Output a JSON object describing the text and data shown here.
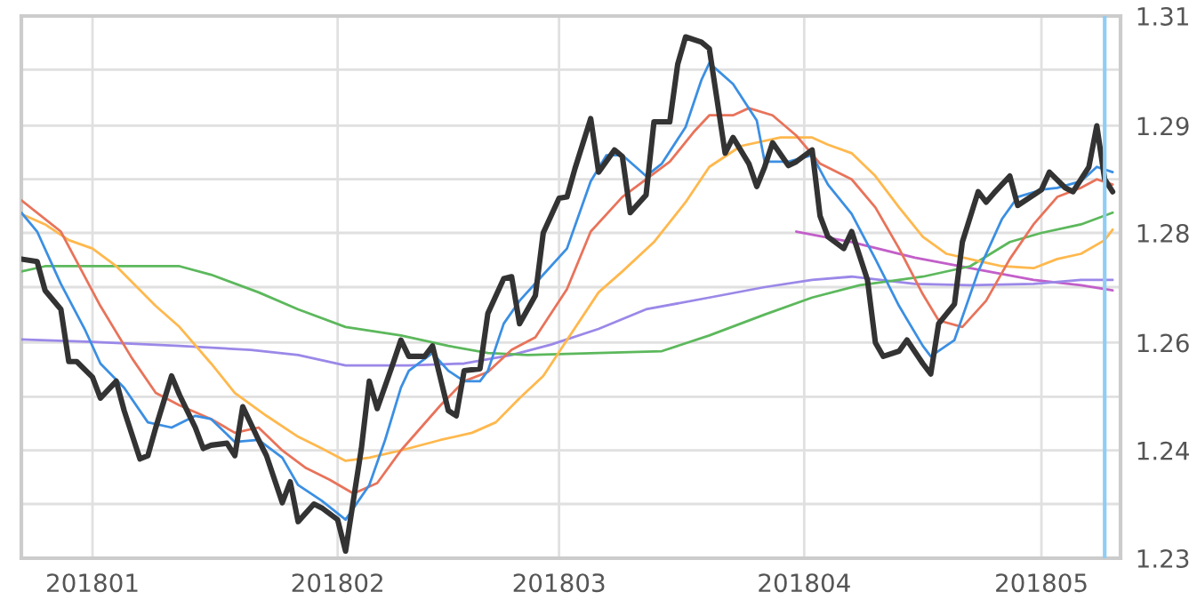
{
  "chart_data": {
    "type": "line",
    "xlim": [
      "2017-12-23",
      "2018-05-11"
    ],
    "ylim": [
      1.2261,
      1.3091
    ],
    "xticks": [
      {
        "value": "2018-01-01",
        "label": "201801"
      },
      {
        "value": "2018-02-01",
        "label": "201802"
      },
      {
        "value": "2018-03-01",
        "label": "201803"
      },
      {
        "value": "2018-04-01",
        "label": "201804"
      },
      {
        "value": "2018-05-01",
        "label": "201805"
      }
    ],
    "yticks": [
      {
        "value": 1.3091,
        "label": "1.31"
      },
      {
        "value": 1.3009,
        "label": null
      },
      {
        "value": 1.2923,
        "label": "1.29"
      },
      {
        "value": 1.2841,
        "label": null
      },
      {
        "value": 1.2759,
        "label": "1.28"
      },
      {
        "value": 1.2676,
        "label": null
      },
      {
        "value": 1.2591,
        "label": "1.26"
      },
      {
        "value": 1.2508,
        "label": null
      },
      {
        "value": 1.2426,
        "label": "1.24"
      },
      {
        "value": 1.2344,
        "label": null
      },
      {
        "value": 1.2261,
        "label": "1.23"
      }
    ],
    "grid": true,
    "marker": "none",
    "line_style": "solid",
    "ref_lines": [
      {
        "axis": "x",
        "value": "2018-05-09",
        "label": null,
        "color": "#90cdf4"
      }
    ],
    "series": [
      {
        "color": "#333333",
        "x": [
          "2017-12-23",
          "2017-12-25",
          "2017-12-26",
          "2017-12-28",
          "2017-12-29",
          "2017-12-30",
          "2018-01-01",
          "2018-01-02",
          "2018-01-04",
          "2018-01-05",
          "2018-01-07",
          "2018-01-08",
          "2018-01-09",
          "2018-01-11",
          "2018-01-12",
          "2018-01-14",
          "2018-01-15",
          "2018-01-16",
          "2018-01-18",
          "2018-01-19",
          "2018-01-20",
          "2018-01-22",
          "2018-01-23",
          "2018-01-25",
          "2018-01-26",
          "2018-01-27",
          "2018-01-29",
          "2018-01-30",
          "2018-02-01",
          "2018-02-02",
          "2018-02-04",
          "2018-02-05",
          "2018-02-06",
          "2018-02-08",
          "2018-02-09",
          "2018-02-10",
          "2018-02-12",
          "2018-02-13",
          "2018-02-15",
          "2018-02-16",
          "2018-02-17",
          "2018-02-19",
          "2018-02-20",
          "2018-02-22",
          "2018-02-23",
          "2018-02-24",
          "2018-02-26",
          "2018-02-27",
          "2018-03-01",
          "2018-03-02",
          "2018-03-03",
          "2018-03-05",
          "2018-03-06",
          "2018-03-08",
          "2018-03-09",
          "2018-03-10",
          "2018-03-12",
          "2018-03-13",
          "2018-03-15",
          "2018-03-16",
          "2018-03-17",
          "2018-03-19",
          "2018-03-20",
          "2018-03-22",
          "2018-03-23",
          "2018-03-25",
          "2018-03-26",
          "2018-03-27",
          "2018-03-28",
          "2018-03-30",
          "2018-03-31",
          "2018-04-02",
          "2018-04-03",
          "2018-04-04",
          "2018-04-06",
          "2018-04-07",
          "2018-04-09",
          "2018-04-10",
          "2018-04-11",
          "2018-04-13",
          "2018-04-14",
          "2018-04-16",
          "2018-04-17",
          "2018-04-18",
          "2018-04-20",
          "2018-04-21",
          "2018-04-23",
          "2018-04-24",
          "2018-04-25",
          "2018-04-27",
          "2018-04-28",
          "2018-04-30",
          "2018-05-01",
          "2018-05-02",
          "2018-05-04",
          "2018-05-05",
          "2018-05-07",
          "2018-05-08",
          "2018-05-09",
          "2018-05-10"
        ],
        "values": [
          1.2719,
          1.2715,
          1.2671,
          1.2642,
          1.2562,
          1.2562,
          1.2538,
          1.2506,
          1.2532,
          1.2487,
          1.2413,
          1.2418,
          1.2461,
          1.254,
          1.2511,
          1.2461,
          1.2429,
          1.2434,
          1.2437,
          1.2418,
          1.2493,
          1.2442,
          1.2418,
          1.2346,
          1.2378,
          1.2317,
          1.2344,
          1.2338,
          1.232,
          1.2272,
          1.2429,
          1.2532,
          1.249,
          1.2559,
          1.2595,
          1.257,
          1.257,
          1.2586,
          1.2487,
          1.2479,
          1.2548,
          1.2551,
          1.2636,
          1.2689,
          1.2692,
          1.262,
          1.2663,
          1.2759,
          1.2812,
          1.2814,
          1.2857,
          1.2934,
          1.2852,
          1.2886,
          1.2876,
          1.279,
          1.2817,
          1.2929,
          1.2929,
          1.3017,
          1.3059,
          1.3051,
          1.3041,
          1.2881,
          1.2905,
          1.2865,
          1.283,
          1.286,
          1.2897,
          1.2862,
          1.2868,
          1.2886,
          1.2785,
          1.2753,
          1.2735,
          1.2761,
          1.2687,
          1.2591,
          1.257,
          1.2578,
          1.2595,
          1.2559,
          1.2543,
          1.262,
          1.265,
          1.2745,
          1.2822,
          1.2806,
          1.282,
          1.2846,
          1.2801,
          1.2817,
          1.2825,
          1.2852,
          1.2828,
          1.2822,
          1.286,
          1.2923,
          1.2841,
          1.2822
        ]
      },
      {
        "color": "#3b8fe3",
        "x": [
          "2017-12-23",
          "2017-12-25",
          "2017-12-28",
          "2017-12-31",
          "2018-01-02",
          "2018-01-05",
          "2018-01-08",
          "2018-01-11",
          "2018-01-14",
          "2018-01-16",
          "2018-01-19",
          "2018-01-22",
          "2018-01-25",
          "2018-01-27",
          "2018-01-30",
          "2018-02-02",
          "2018-02-05",
          "2018-02-07",
          "2018-02-09",
          "2018-02-10",
          "2018-02-13",
          "2018-02-15",
          "2018-02-17",
          "2018-02-19",
          "2018-02-20",
          "2018-02-22",
          "2018-02-24",
          "2018-02-27",
          "2018-03-02",
          "2018-03-05",
          "2018-03-07",
          "2018-03-09",
          "2018-03-12",
          "2018-03-14",
          "2018-03-17",
          "2018-03-19",
          "2018-03-20",
          "2018-03-23",
          "2018-03-26",
          "2018-03-27",
          "2018-03-30",
          "2018-04-02",
          "2018-04-04",
          "2018-04-07",
          "2018-04-10",
          "2018-04-13",
          "2018-04-16",
          "2018-04-17",
          "2018-04-20",
          "2018-04-23",
          "2018-04-26",
          "2018-04-28",
          "2018-05-01",
          "2018-05-03",
          "2018-05-06",
          "2018-05-08",
          "2018-05-10"
        ],
        "values": [
          1.279,
          1.2761,
          1.2681,
          1.2612,
          1.2559,
          1.2522,
          1.2469,
          1.2461,
          1.2479,
          1.2474,
          1.2439,
          1.2442,
          1.2415,
          1.2373,
          1.2349,
          1.232,
          1.2373,
          1.2442,
          1.2522,
          1.2548,
          1.2575,
          1.2548,
          1.2532,
          1.2532,
          1.2548,
          1.262,
          1.2655,
          1.2695,
          1.2735,
          1.2838,
          1.2878,
          1.2878,
          1.2846,
          1.2865,
          1.2921,
          1.2993,
          1.3019,
          1.2987,
          1.2931,
          1.2868,
          1.2868,
          1.2878,
          1.2833,
          1.2788,
          1.2719,
          1.2647,
          1.2586,
          1.257,
          1.2595,
          1.27,
          1.278,
          1.2814,
          1.2825,
          1.2828,
          1.2838,
          1.286,
          1.2852
        ]
      },
      {
        "color": "#e8735a",
        "x": [
          "2017-12-23",
          "2017-12-28",
          "2018-01-02",
          "2018-01-06",
          "2018-01-09",
          "2018-01-12",
          "2018-01-16",
          "2018-01-19",
          "2018-01-22",
          "2018-01-25",
          "2018-01-28",
          "2018-01-31",
          "2018-02-03",
          "2018-02-06",
          "2018-02-09",
          "2018-02-14",
          "2018-02-17",
          "2018-02-20",
          "2018-02-23",
          "2018-02-26",
          "2018-03-02",
          "2018-03-05",
          "2018-03-09",
          "2018-03-15",
          "2018-03-18",
          "2018-03-20",
          "2018-03-23",
          "2018-03-25",
          "2018-03-28",
          "2018-03-31",
          "2018-04-03",
          "2018-04-07",
          "2018-04-10",
          "2018-04-13",
          "2018-04-16",
          "2018-04-18",
          "2018-04-21",
          "2018-04-24",
          "2018-04-27",
          "2018-04-30",
          "2018-05-03",
          "2018-05-06",
          "2018-05-08",
          "2018-05-10"
        ],
        "values": [
          1.2809,
          1.2761,
          1.2647,
          1.2567,
          1.2514,
          1.2495,
          1.2474,
          1.2453,
          1.2461,
          1.2426,
          1.2399,
          1.2381,
          1.236,
          1.2376,
          1.2426,
          1.2495,
          1.2532,
          1.2546,
          1.258,
          1.2599,
          1.2673,
          1.2761,
          1.2814,
          1.2868,
          1.2913,
          1.2939,
          1.2939,
          1.295,
          1.2939,
          1.2908,
          1.2865,
          1.2841,
          1.2798,
          1.2735,
          1.2665,
          1.2625,
          1.2615,
          1.2655,
          1.2719,
          1.2772,
          1.2814,
          1.2828,
          1.2841,
          1.2833
        ]
      },
      {
        "color": "#ffb84d",
        "x": [
          "2017-12-23",
          "2017-12-26",
          "2017-12-29",
          "2018-01-01",
          "2018-01-04",
          "2018-01-09",
          "2018-01-12",
          "2018-01-16",
          "2018-01-19",
          "2018-01-23",
          "2018-01-27",
          "2018-01-30",
          "2018-02-02",
          "2018-02-05",
          "2018-02-09",
          "2018-02-14",
          "2018-02-18",
          "2018-02-21",
          "2018-02-24",
          "2018-02-27",
          "2018-03-02",
          "2018-03-06",
          "2018-03-09",
          "2018-03-13",
          "2018-03-17",
          "2018-03-20",
          "2018-03-24",
          "2018-03-29",
          "2018-04-02",
          "2018-04-04",
          "2018-04-07",
          "2018-04-10",
          "2018-04-13",
          "2018-04-16",
          "2018-04-19",
          "2018-04-23",
          "2018-04-26",
          "2018-04-30",
          "2018-05-03",
          "2018-05-06",
          "2018-05-09",
          "2018-05-10"
        ],
        "values": [
          1.2788,
          1.2772,
          1.2748,
          1.2735,
          1.2708,
          1.2647,
          1.2615,
          1.2559,
          1.2514,
          1.2479,
          1.2447,
          1.2429,
          1.241,
          1.2415,
          1.2426,
          1.2442,
          1.2453,
          1.2469,
          1.2506,
          1.254,
          1.2595,
          1.2668,
          1.27,
          1.2745,
          1.2806,
          1.286,
          1.2892,
          1.2905,
          1.2905,
          1.2894,
          1.2881,
          1.2846,
          1.2798,
          1.2753,
          1.2727,
          1.2716,
          1.2708,
          1.2705,
          1.2719,
          1.2727,
          1.2748,
          1.2764
        ]
      },
      {
        "color": "#5cb85c",
        "x": [
          "2017-12-23",
          "2017-12-26",
          "2018-01-06",
          "2018-01-12",
          "2018-01-16",
          "2018-01-22",
          "2018-01-27",
          "2018-02-02",
          "2018-02-09",
          "2018-02-15",
          "2018-02-20",
          "2018-02-25",
          "2018-03-06",
          "2018-03-14",
          "2018-03-20",
          "2018-03-27",
          "2018-04-02",
          "2018-04-08",
          "2018-04-16",
          "2018-04-22",
          "2018-04-27",
          "2018-05-01",
          "2018-05-06",
          "2018-05-10"
        ],
        "values": [
          1.27,
          1.2708,
          1.2708,
          1.2708,
          1.2695,
          1.2668,
          1.2642,
          1.2615,
          1.2602,
          1.2586,
          1.2575,
          1.2572,
          1.2575,
          1.2578,
          1.2602,
          1.2634,
          1.266,
          1.2679,
          1.2692,
          1.2708,
          1.2745,
          1.2759,
          1.2772,
          1.279
        ]
      },
      {
        "color": "#9b88e8",
        "x": [
          "2017-12-23",
          "2018-01-01",
          "2018-01-12",
          "2018-01-21",
          "2018-01-27",
          "2018-02-02",
          "2018-02-10",
          "2018-02-17",
          "2018-02-23",
          "2018-02-28",
          "2018-03-06",
          "2018-03-12",
          "2018-03-20",
          "2018-03-27",
          "2018-04-02",
          "2018-04-07",
          "2018-04-15",
          "2018-04-22",
          "2018-04-30",
          "2018-05-06",
          "2018-05-10"
        ],
        "values": [
          1.2596,
          1.2592,
          1.2586,
          1.258,
          1.2572,
          1.2556,
          1.2556,
          1.2559,
          1.2572,
          1.2588,
          1.2612,
          1.2642,
          1.266,
          1.2676,
          1.2687,
          1.2692,
          1.2681,
          1.2679,
          1.2681,
          1.2687,
          1.2687
        ]
      },
      {
        "color": "#c25fc9",
        "x": [
          "2018-03-31",
          "2018-04-07",
          "2018-04-15",
          "2018-04-22",
          "2018-04-30",
          "2018-05-06",
          "2018-05-10"
        ],
        "values": [
          1.2761,
          1.2745,
          1.2721,
          1.2705,
          1.2687,
          1.2679,
          1.2671
        ]
      }
    ]
  }
}
